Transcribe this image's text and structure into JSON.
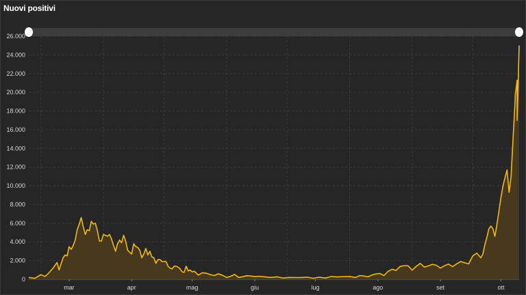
{
  "title": "Nuovi positivi",
  "colors": {
    "background": "#262626",
    "line": "#f5b90a",
    "area": "#4a3c1e",
    "grid": "#3b3b3b",
    "slider_track": "#3d3d3d",
    "slider_handle": "#ffffff"
  },
  "chart_data": {
    "type": "area",
    "title": "Nuovi positivi",
    "xlabel": "",
    "ylabel": "",
    "ylim": [
      0,
      26000
    ],
    "yticks": [
      0,
      2000,
      4000,
      6000,
      8000,
      10000,
      12000,
      14000,
      16000,
      18000,
      20000,
      22000,
      24000,
      26000
    ],
    "ytick_labels": [
      "0",
      "2.000",
      "4.000",
      "6.000",
      "8.000",
      "10.000",
      "12.000",
      "14.000",
      "16.000",
      "18.000",
      "20.000",
      "22.000",
      "24.000",
      "26.000"
    ],
    "x_domain": [
      "2020-02-24",
      "2020-10-24"
    ],
    "xticks": [
      {
        "label": "mar",
        "date": "2020-03-15"
      },
      {
        "label": "apr",
        "date": "2020-04-15"
      },
      {
        "label": "mag",
        "date": "2020-05-15"
      },
      {
        "label": "giu",
        "date": "2020-06-15"
      },
      {
        "label": "lug",
        "date": "2020-07-15"
      },
      {
        "label": "ago",
        "date": "2020-08-15"
      },
      {
        "label": "set",
        "date": "2020-09-15"
      },
      {
        "label": "ott",
        "date": "2020-10-15"
      }
    ],
    "grid": true,
    "series": [
      {
        "values": [
          [
            "2020-02-24",
            200
          ],
          [
            "2020-02-27",
            100
          ],
          [
            "2020-03-01",
            500
          ],
          [
            "2020-03-03",
            300
          ],
          [
            "2020-03-05",
            700
          ],
          [
            "2020-03-07",
            1200
          ],
          [
            "2020-03-09",
            1800
          ],
          [
            "2020-03-10",
            1000
          ],
          [
            "2020-03-12",
            2300
          ],
          [
            "2020-03-13",
            2600
          ],
          [
            "2020-03-14",
            2500
          ],
          [
            "2020-03-15",
            3500
          ],
          [
            "2020-03-16",
            3200
          ],
          [
            "2020-03-17",
            3600
          ],
          [
            "2020-03-18",
            4200
          ],
          [
            "2020-03-19",
            5300
          ],
          [
            "2020-03-20",
            5900
          ],
          [
            "2020-03-21",
            6600
          ],
          [
            "2020-03-22",
            5600
          ],
          [
            "2020-03-23",
            4800
          ],
          [
            "2020-03-24",
            5300
          ],
          [
            "2020-03-25",
            5200
          ],
          [
            "2020-03-26",
            6200
          ],
          [
            "2020-03-27",
            5900
          ],
          [
            "2020-03-28",
            6000
          ],
          [
            "2020-03-29",
            5200
          ],
          [
            "2020-03-30",
            4100
          ],
          [
            "2020-03-31",
            4100
          ],
          [
            "2020-04-01",
            4800
          ],
          [
            "2020-04-02",
            4700
          ],
          [
            "2020-04-03",
            4600
          ],
          [
            "2020-04-04",
            4800
          ],
          [
            "2020-04-05",
            4300
          ],
          [
            "2020-04-06",
            3600
          ],
          [
            "2020-04-07",
            3000
          ],
          [
            "2020-04-08",
            3800
          ],
          [
            "2020-04-09",
            4200
          ],
          [
            "2020-04-10",
            3900
          ],
          [
            "2020-04-11",
            4700
          ],
          [
            "2020-04-12",
            4100
          ],
          [
            "2020-04-13",
            3100
          ],
          [
            "2020-04-14",
            2900
          ],
          [
            "2020-04-15",
            2700
          ],
          [
            "2020-04-16",
            3800
          ],
          [
            "2020-04-17",
            3500
          ],
          [
            "2020-04-18",
            3400
          ],
          [
            "2020-04-19",
            3100
          ],
          [
            "2020-04-20",
            2300
          ],
          [
            "2020-04-21",
            2700
          ],
          [
            "2020-04-22",
            3300
          ],
          [
            "2020-04-23",
            2600
          ],
          [
            "2020-04-24",
            3000
          ],
          [
            "2020-04-25",
            2400
          ],
          [
            "2020-04-26",
            2300
          ],
          [
            "2020-04-27",
            1700
          ],
          [
            "2020-04-28",
            2100
          ],
          [
            "2020-04-29",
            2100
          ],
          [
            "2020-04-30",
            1900
          ],
          [
            "2020-05-01",
            1900
          ],
          [
            "2020-05-02",
            1900
          ],
          [
            "2020-05-03",
            1400
          ],
          [
            "2020-05-04",
            1200
          ],
          [
            "2020-05-05",
            1100
          ],
          [
            "2020-05-06",
            1400
          ],
          [
            "2020-05-07",
            1400
          ],
          [
            "2020-05-08",
            1300
          ],
          [
            "2020-05-09",
            1100
          ],
          [
            "2020-05-10",
            800
          ],
          [
            "2020-05-11",
            740
          ],
          [
            "2020-05-12",
            1400
          ],
          [
            "2020-05-13",
            900
          ],
          [
            "2020-05-14",
            990
          ],
          [
            "2020-05-15",
            790
          ],
          [
            "2020-05-16",
            870
          ],
          [
            "2020-05-17",
            680
          ],
          [
            "2020-05-18",
            450
          ],
          [
            "2020-05-20",
            700
          ],
          [
            "2020-05-22",
            650
          ],
          [
            "2020-05-24",
            500
          ],
          [
            "2020-05-26",
            400
          ],
          [
            "2020-05-28",
            590
          ],
          [
            "2020-05-30",
            420
          ],
          [
            "2020-06-01",
            200
          ],
          [
            "2020-06-03",
            320
          ],
          [
            "2020-06-05",
            520
          ],
          [
            "2020-06-07",
            200
          ],
          [
            "2020-06-09",
            280
          ],
          [
            "2020-06-11",
            380
          ],
          [
            "2020-06-13",
            350
          ],
          [
            "2020-06-15",
            300
          ],
          [
            "2020-06-17",
            330
          ],
          [
            "2020-06-20",
            260
          ],
          [
            "2020-06-23",
            200
          ],
          [
            "2020-06-26",
            260
          ],
          [
            "2020-06-29",
            130
          ],
          [
            "2020-07-02",
            200
          ],
          [
            "2020-07-05",
            190
          ],
          [
            "2020-07-08",
            190
          ],
          [
            "2020-07-11",
            230
          ],
          [
            "2020-07-14",
            110
          ],
          [
            "2020-07-17",
            230
          ],
          [
            "2020-07-20",
            130
          ],
          [
            "2020-07-23",
            300
          ],
          [
            "2020-07-26",
            250
          ],
          [
            "2020-07-29",
            290
          ],
          [
            "2020-08-01",
            300
          ],
          [
            "2020-08-04",
            200
          ],
          [
            "2020-08-06",
            400
          ],
          [
            "2020-08-08",
            350
          ],
          [
            "2020-08-10",
            260
          ],
          [
            "2020-08-12",
            450
          ],
          [
            "2020-08-14",
            580
          ],
          [
            "2020-08-16",
            630
          ],
          [
            "2020-08-18",
            400
          ],
          [
            "2020-08-20",
            850
          ],
          [
            "2020-08-22",
            1070
          ],
          [
            "2020-08-24",
            950
          ],
          [
            "2020-08-26",
            1370
          ],
          [
            "2020-08-28",
            1460
          ],
          [
            "2020-08-30",
            1440
          ],
          [
            "2020-09-01",
            980
          ],
          [
            "2020-09-03",
            1390
          ],
          [
            "2020-09-05",
            1700
          ],
          [
            "2020-09-07",
            1300
          ],
          [
            "2020-09-09",
            1430
          ],
          [
            "2020-09-11",
            1600
          ],
          [
            "2020-09-13",
            1500
          ],
          [
            "2020-09-15",
            1200
          ],
          [
            "2020-09-17",
            1450
          ],
          [
            "2020-09-19",
            1630
          ],
          [
            "2020-09-21",
            1350
          ],
          [
            "2020-09-23",
            1650
          ],
          [
            "2020-09-25",
            1900
          ],
          [
            "2020-09-27",
            1770
          ],
          [
            "2020-09-29",
            1650
          ],
          [
            "2020-10-01",
            2500
          ],
          [
            "2020-10-03",
            2800
          ],
          [
            "2020-10-05",
            2300
          ],
          [
            "2020-10-06",
            2700
          ],
          [
            "2020-10-07",
            3700
          ],
          [
            "2020-10-08",
            4500
          ],
          [
            "2020-10-09",
            5400
          ],
          [
            "2020-10-10",
            5700
          ],
          [
            "2020-10-11",
            5400
          ],
          [
            "2020-10-12",
            4600
          ],
          [
            "2020-10-13",
            5900
          ],
          [
            "2020-10-14",
            7300
          ],
          [
            "2020-10-15",
            8800
          ],
          [
            "2020-10-16",
            10000
          ],
          [
            "2020-10-17",
            10900
          ],
          [
            "2020-10-18",
            11700
          ],
          [
            "2020-10-19",
            9300
          ],
          [
            "2020-10-20",
            11000
          ],
          [
            "2020-10-21",
            15200
          ],
          [
            "2020-10-22",
            19100
          ],
          [
            "2020-10-22",
            19600
          ],
          [
            "2020-10-23",
            21300
          ],
          [
            "2020-10-23",
            17000
          ],
          [
            "2020-10-24",
            25000
          ]
        ]
      }
    ],
    "range_slider": {
      "start": "2020-02-24",
      "end": "2020-10-24"
    }
  }
}
